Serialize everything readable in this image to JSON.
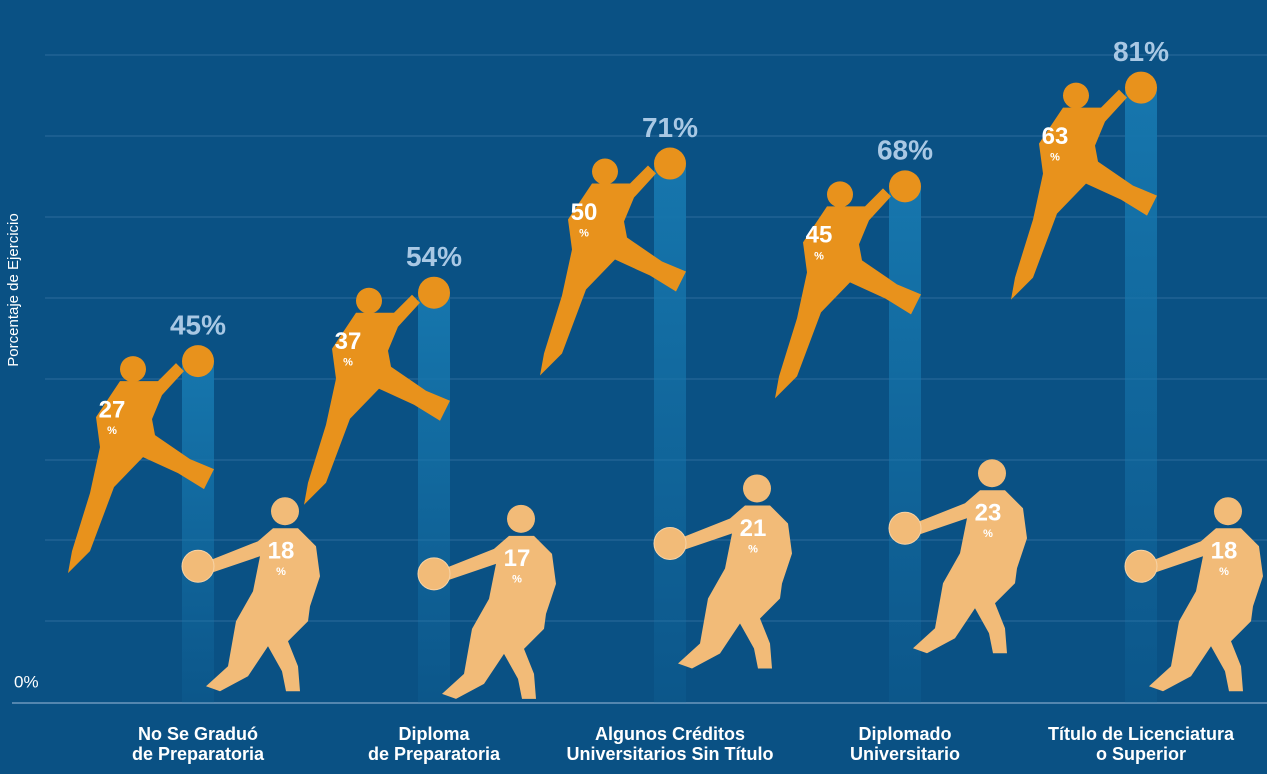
{
  "chart_data": {
    "type": "stacked-figures",
    "y_label": "Porcentaje de Ejercicio",
    "categories": [
      [
        "No Se Graduó",
        "de Preparatoria"
      ],
      [
        "Diploma",
        "de Preparatoria"
      ],
      [
        "Algunos Créditos",
        "Universitarios Sin Título"
      ],
      [
        "Diplomado",
        "Universitario"
      ],
      [
        "Título de Licenciatura",
        "o Superior"
      ]
    ],
    "series": [
      {
        "color": "#e8921c",
        "values": [
          27,
          37,
          50,
          45,
          63
        ]
      },
      {
        "color": "#f2bb78",
        "values": [
          18,
          17,
          21,
          23,
          18
        ]
      }
    ],
    "value_label_unit": "%",
    "totals": {
      "color": "#1676ad",
      "values": [
        45,
        54,
        71,
        68,
        81
      ],
      "value_labels": [
        "45%",
        "54%",
        "71%",
        "68%",
        "81%"
      ]
    },
    "ylim": [
      0,
      92
    ],
    "yticks": [
      {
        "value": 0,
        "label": "0%"
      }
    ]
  }
}
